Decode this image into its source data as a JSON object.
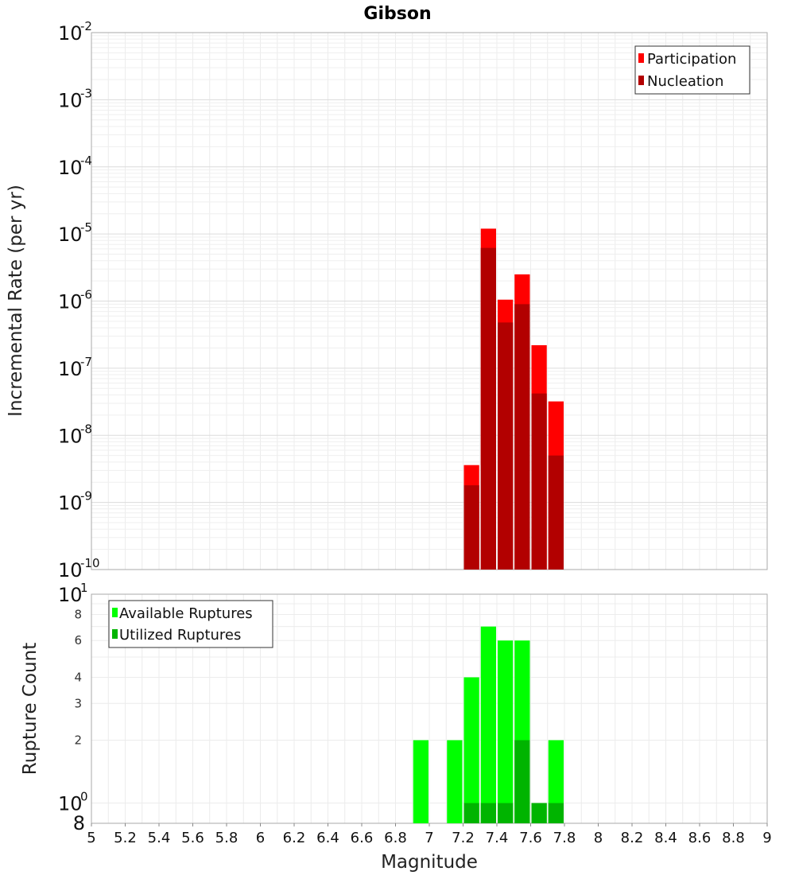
{
  "chart_data": [
    {
      "type": "bar",
      "title": "Gibson",
      "ylabel": "Incremental Rate (per yr)",
      "xlabel": "Magnitude",
      "y_scale": "log",
      "ylim": [
        1e-10,
        0.01
      ],
      "xlim": [
        5,
        9
      ],
      "bin_width": 0.1,
      "grid": true,
      "legend_position": "top-right",
      "y_ticks": [
        {
          "base": "10",
          "exp": "-2",
          "value": 0.01
        },
        {
          "base": "10",
          "exp": "-3",
          "value": 0.001
        },
        {
          "base": "10",
          "exp": "-4",
          "value": 0.0001
        },
        {
          "base": "10",
          "exp": "-5",
          "value": 1e-05
        },
        {
          "base": "10",
          "exp": "-6",
          "value": 1e-06
        },
        {
          "base": "10",
          "exp": "-7",
          "value": 1e-07
        },
        {
          "base": "10",
          "exp": "-8",
          "value": 1e-08
        },
        {
          "base": "10",
          "exp": "-9",
          "value": 1e-09
        },
        {
          "base": "10",
          "exp": "-10",
          "value": 1e-10
        }
      ],
      "series": [
        {
          "name": "Participation",
          "color": "#ff0000",
          "x": [
            7.25,
            7.35,
            7.45,
            7.55,
            7.65,
            7.75
          ],
          "values": [
            3.6e-09,
            1.2e-05,
            1.05e-06,
            2.5e-06,
            2.2e-07,
            3.2e-08
          ]
        },
        {
          "name": "Nucleation",
          "color": "#b20000",
          "x": [
            7.25,
            7.35,
            7.45,
            7.55,
            7.65,
            7.75
          ],
          "values": [
            1.8e-09,
            6.2e-06,
            4.8e-07,
            9e-07,
            4.2e-08,
            5e-09
          ]
        }
      ]
    },
    {
      "type": "bar",
      "title": "",
      "ylabel": "Rupture Count",
      "xlabel": "Magnitude",
      "y_scale": "log",
      "ylim": [
        0.8,
        10
      ],
      "xlim": [
        5,
        9
      ],
      "bin_width": 0.1,
      "grid": true,
      "legend_position": "top-left",
      "y_ticks": [
        {
          "label": "8",
          "value": 8,
          "size": "small"
        },
        {
          "label": "6",
          "value": 6,
          "size": "small"
        },
        {
          "label": "4",
          "value": 4,
          "size": "small"
        },
        {
          "label": "3",
          "value": 3,
          "size": "small"
        },
        {
          "label": "2",
          "value": 2,
          "size": "small"
        }
      ],
      "y_major_ticks": [
        {
          "base": "10",
          "exp": "1",
          "value": 10
        },
        {
          "base": "10",
          "exp": "0",
          "value": 1
        }
      ],
      "y_bottom_label": {
        "label": "8",
        "value": 0.8
      },
      "series": [
        {
          "name": "Available Ruptures",
          "color": "#00ff00",
          "x": [
            6.95,
            7.15,
            7.25,
            7.35,
            7.45,
            7.55,
            7.65,
            7.75
          ],
          "values": [
            2,
            2,
            4,
            7,
            6,
            6,
            1,
            2
          ]
        },
        {
          "name": "Utilized Ruptures",
          "color": "#00b400",
          "x": [
            7.25,
            7.35,
            7.45,
            7.55,
            7.65,
            7.75
          ],
          "values": [
            1,
            1,
            1,
            2,
            1,
            1
          ]
        }
      ]
    }
  ],
  "x_ticks": [
    "5",
    "5.2",
    "5.4",
    "5.6",
    "5.8",
    "6",
    "6.2",
    "6.4",
    "6.6",
    "6.8",
    "7",
    "7.2",
    "7.4",
    "7.6",
    "7.8",
    "8",
    "8.2",
    "8.4",
    "8.6",
    "8.8",
    "9"
  ]
}
